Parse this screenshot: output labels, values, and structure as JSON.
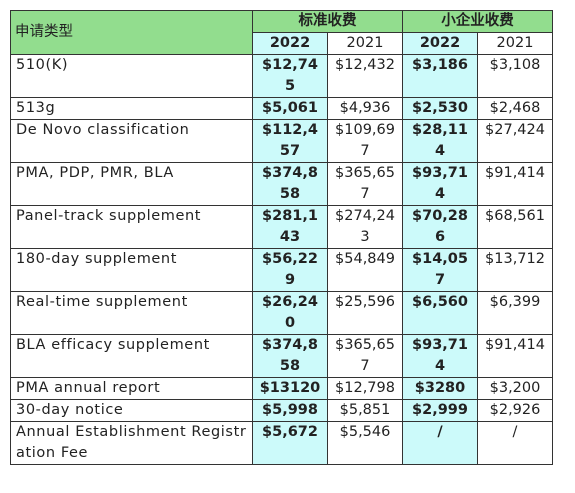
{
  "table": {
    "header": {
      "type_label": "申请类型",
      "standard": "标准收费",
      "small": "小企业收费",
      "standard_2022": "2022",
      "standard_2021": "2021",
      "small_2022": "2022",
      "small_2021": "2021"
    },
    "rows": [
      [
        "510(K)",
        "$12,745",
        "$12,432",
        "$3,186",
        "$3,108"
      ],
      [
        "513g",
        "$5,061",
        "$4,936",
        "$2,530",
        "$2,468"
      ],
      [
        "De Novo classification",
        "$112,457",
        "$109,697",
        "$28,114",
        "$27,424"
      ],
      [
        "PMA, PDP, PMR, BLA",
        "$374,858",
        "$365,657",
        "$93,714",
        "$91,414"
      ],
      [
        "Panel-track supplement",
        "$281,143",
        "$274,243",
        "$70,286",
        "$68,561"
      ],
      [
        "180-day supplement",
        "$56,229",
        "$54,849",
        "$14,057",
        "$13,712"
      ],
      [
        "Real-time supplement",
        "$26,240",
        "$25,596",
        "$6,560",
        "$6,399"
      ],
      [
        "BLA efficacy supplement",
        "$374,858",
        "$365,657",
        "$93,714",
        "$91,414"
      ],
      [
        "PMA annual report",
        "$13120",
        "$12,798",
        "$3280",
        "$3,200"
      ],
      [
        "30-day notice",
        "$5,998",
        "$5,851",
        "$2,999",
        "$2,926"
      ],
      [
        "Annual Establishment Registration Fee",
        "$5,672",
        "$5,546",
        "/",
        "/"
      ]
    ]
  }
}
